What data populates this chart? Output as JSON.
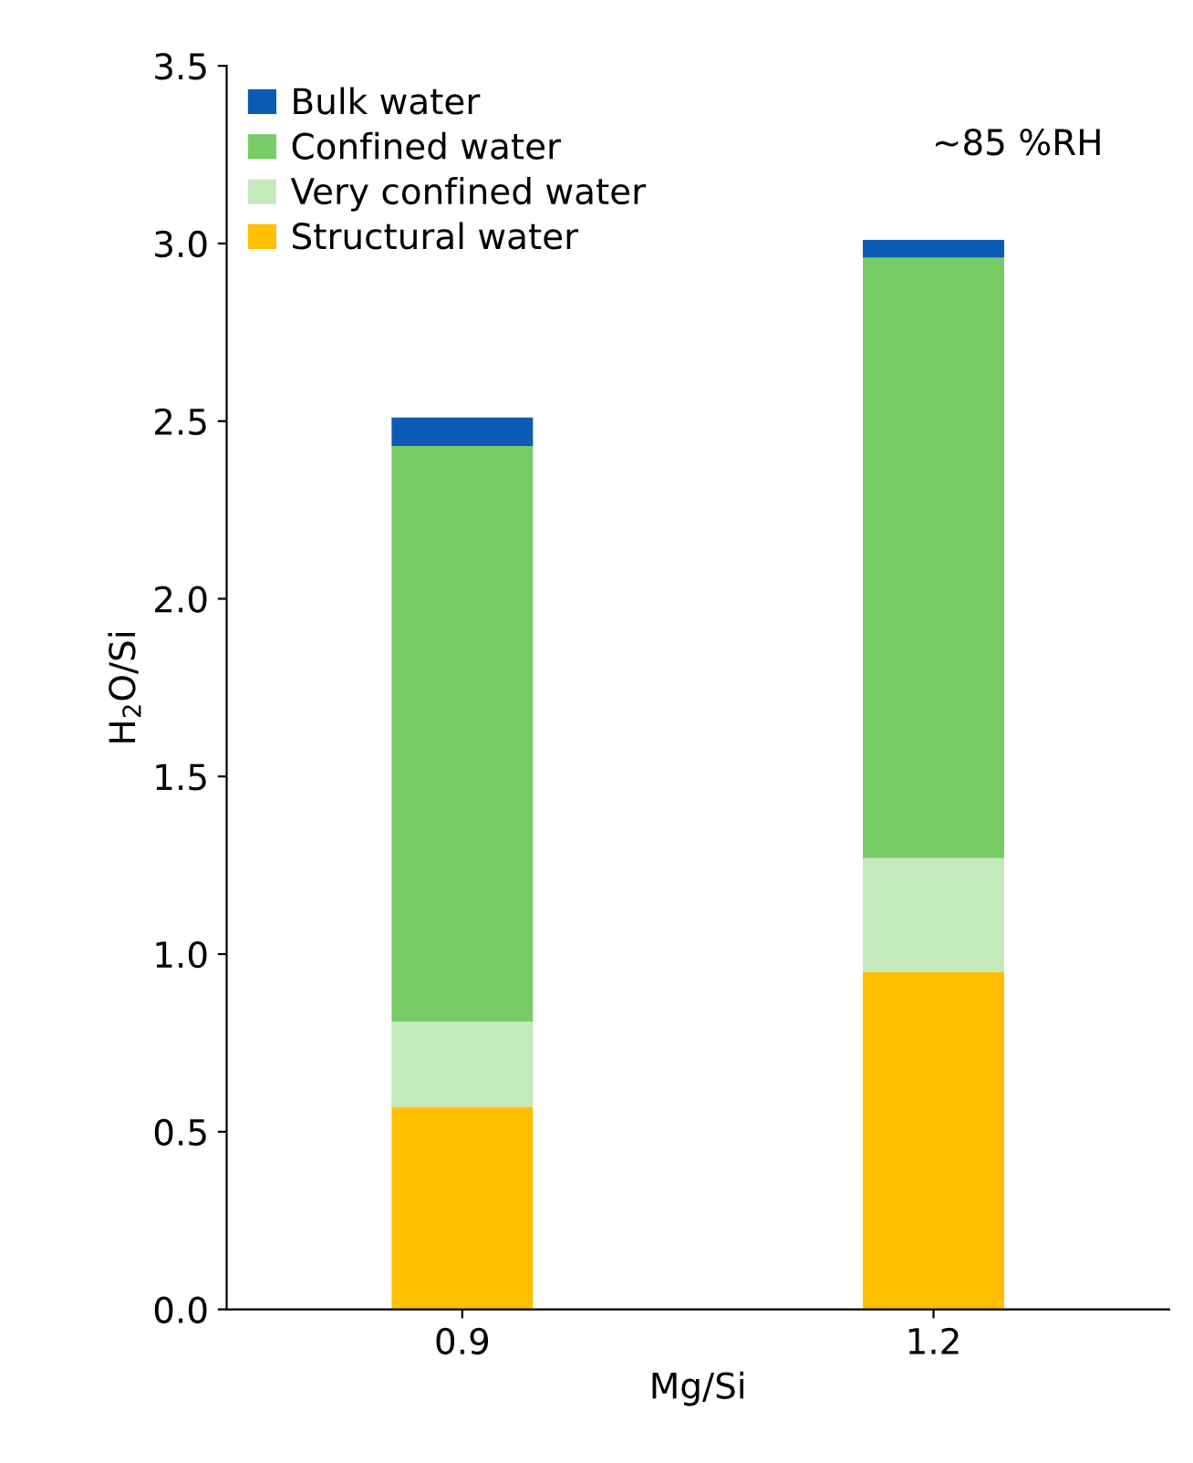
{
  "chart_data": {
    "type": "bar",
    "stacked": true,
    "categories": [
      "0.9",
      "1.2"
    ],
    "xlabel": "Mg/Si",
    "ylabel": "H$_{2}$O/Si",
    "ylim": [
      0,
      3.5
    ],
    "yticks": [
      {
        "value": 0,
        "label": "0.0"
      },
      {
        "value": 0.5,
        "label": "0.5"
      },
      {
        "value": 1,
        "label": "1.0"
      },
      {
        "value": 1.5,
        "label": "1.5"
      },
      {
        "value": 2,
        "label": "2.0"
      },
      {
        "value": 2.5,
        "label": "2.5"
      },
      {
        "value": 3,
        "label": "3.0"
      },
      {
        "value": 3.5,
        "label": "3.5"
      }
    ],
    "series": [
      {
        "name": "Structural water",
        "color": "#ffc000",
        "values": [
          0.57,
          0.95
        ]
      },
      {
        "name": "Very confined water",
        "color": "#c4e9bc",
        "values": [
          0.24,
          0.32
        ]
      },
      {
        "name": "Confined water",
        "color": "#77cc66",
        "values": [
          1.62,
          1.69
        ]
      },
      {
        "name": "Bulk water",
        "color": "#0d5bb5",
        "values": [
          0.08,
          0.05
        ]
      }
    ],
    "annotations": [
      "~85 %RH"
    ],
    "legend": "top left",
    "grid": false
  }
}
